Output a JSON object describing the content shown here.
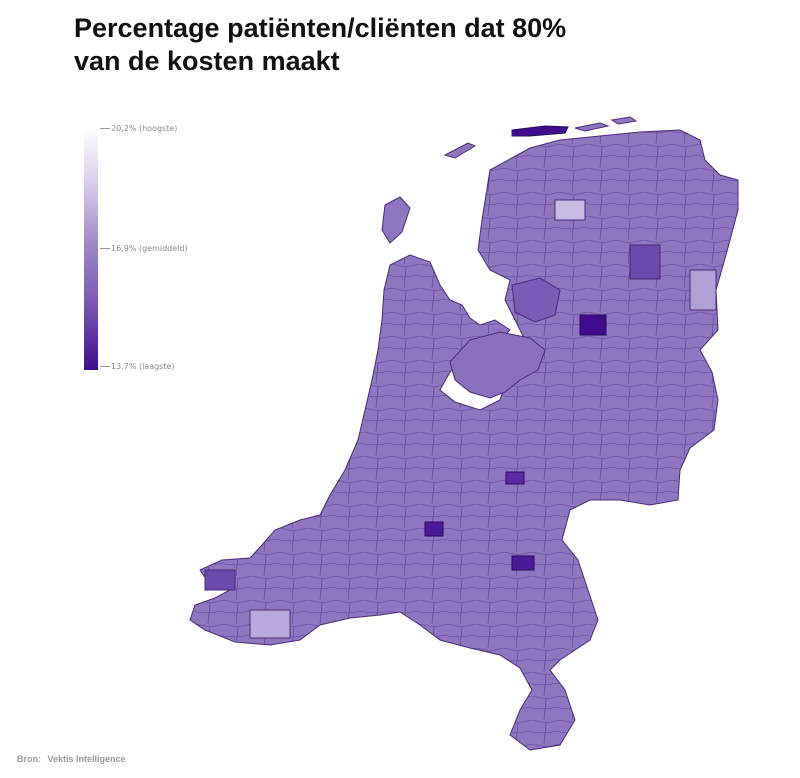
{
  "title": {
    "line1": "Percentage patiënten/cliënten dat 80%",
    "line2": "van de kosten maakt"
  },
  "legend": {
    "high_label": "20,2% (hoogste)",
    "mid_label": "16,9% (gemiddeld)",
    "low_label": "13,7% (laagste)",
    "colors": {
      "high": "#ffffff",
      "mid": "#9a84c6",
      "low": "#3f0d8c"
    }
  },
  "map": {
    "region": "Nederland (gemeenten)",
    "border_color": "#4a2a7a"
  },
  "source": {
    "prefix": "Bron:",
    "name": "Vektis Intelligence"
  }
}
